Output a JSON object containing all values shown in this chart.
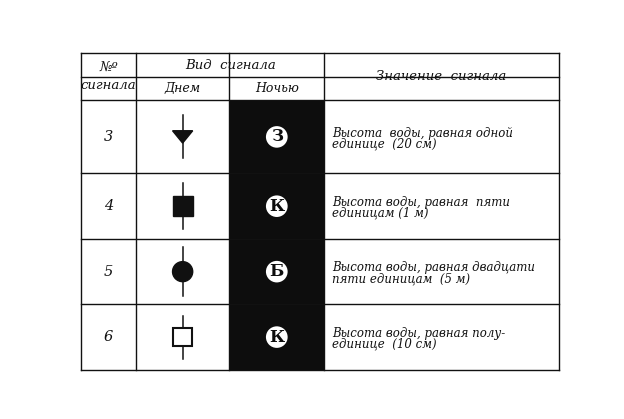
{
  "col_header_num": "№º\nсигнала",
  "col_header_vid": "Вид  сигнала",
  "col_header_day": "Днем",
  "col_header_night": "Ночью",
  "col_header_meaning": "Значение  сигнала",
  "rows": [
    {
      "number": "3",
      "night_label": "З",
      "meaning_line1": "Высота  воды, равная одной",
      "meaning_line2": "единице  (20 см)"
    },
    {
      "number": "4",
      "night_label": "К",
      "meaning_line1": "Высота воды, равная  пяти",
      "meaning_line2": "единицам (1 м)"
    },
    {
      "number": "5",
      "night_label": "Б",
      "meaning_line1": "Высота воды, равная двадцати",
      "meaning_line2": "пяти единицам  (5 м)"
    },
    {
      "number": "6",
      "night_label": "К",
      "meaning_line1": "Высота воды, равная полу-",
      "meaning_line2": "единице  (10 см)"
    }
  ],
  "bg_color": "#ffffff",
  "night_bg": "#0d0d0d",
  "text_color": "#111111",
  "white": "#ffffff",
  "line_color": "#111111",
  "c0": 4,
  "c1": 75,
  "c2": 195,
  "c3": 318,
  "c4": 620,
  "r0": 4,
  "r1": 35,
  "r2": 65,
  "r3": 160,
  "r4": 245,
  "r5": 330,
  "r6": 415
}
